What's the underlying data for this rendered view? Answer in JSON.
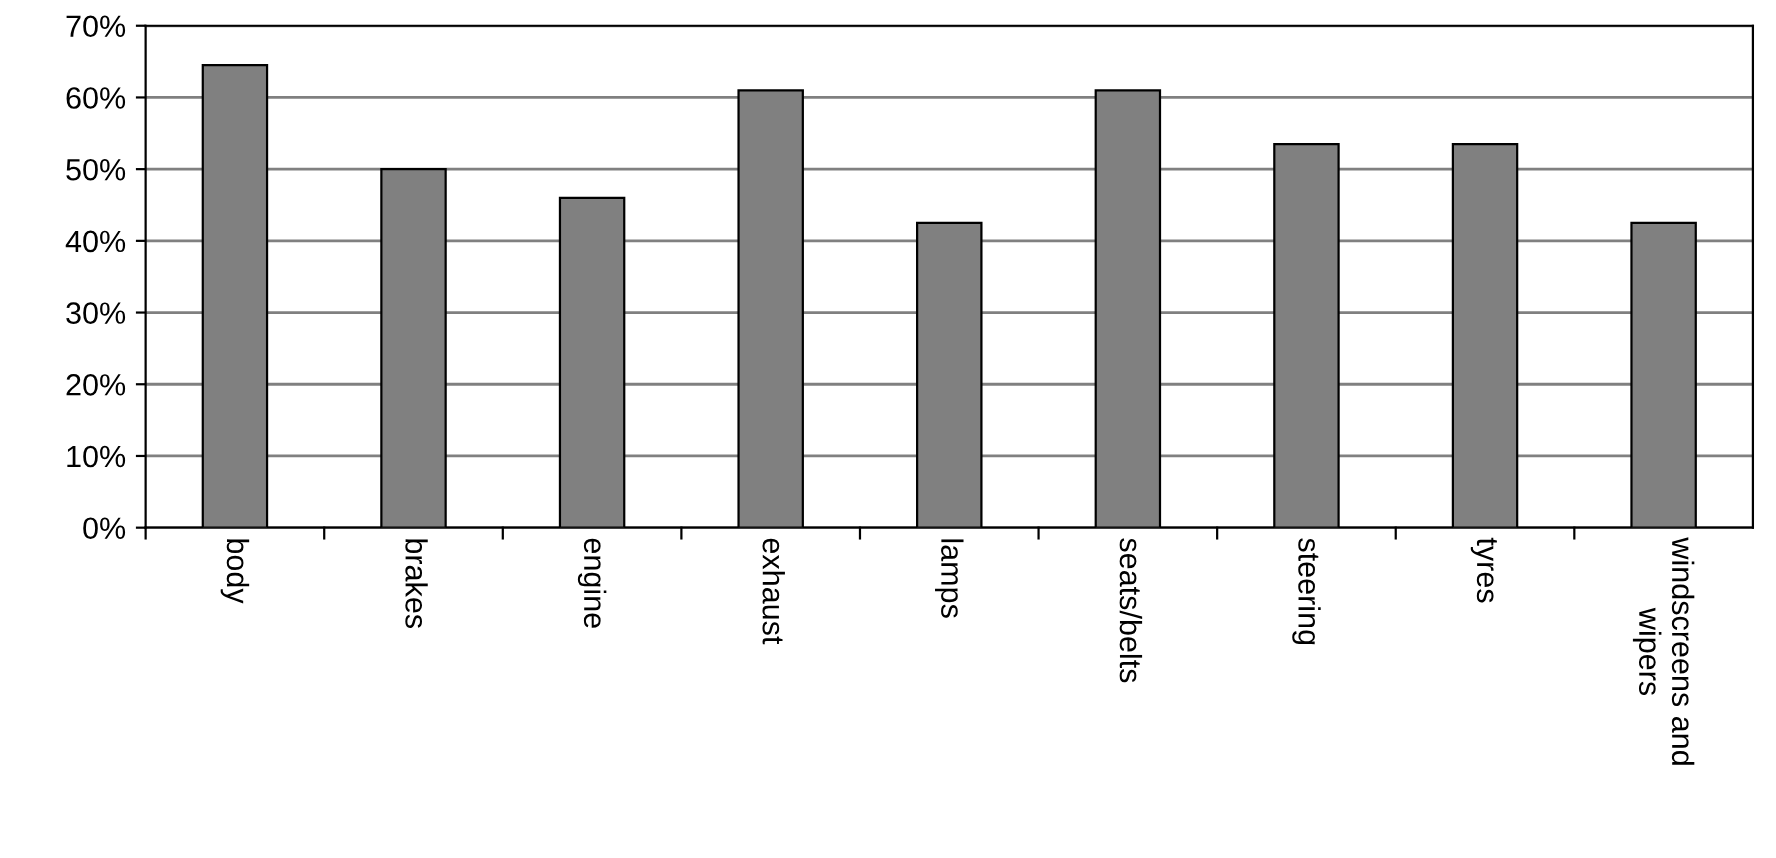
{
  "chart_data": {
    "type": "bar",
    "categories": [
      "body",
      "brakes",
      "engine",
      "exhaust",
      "lamps",
      "seats/belts",
      "steering",
      "tyres",
      "windscreens and\nwipers"
    ],
    "values": [
      64.5,
      50,
      46,
      61,
      42.5,
      61,
      53.5,
      53.5,
      42.5
    ],
    "color": "#808080",
    "ylim": [
      0,
      70
    ],
    "yticks": [
      {
        "value": 0,
        "label": "0%"
      },
      {
        "value": 10,
        "label": "10%"
      },
      {
        "value": 20,
        "label": "20%"
      },
      {
        "value": 30,
        "label": "30%"
      },
      {
        "value": 40,
        "label": "40%"
      },
      {
        "value": 50,
        "label": "50%"
      },
      {
        "value": 60,
        "label": "60%"
      },
      {
        "value": 70,
        "label": "70%"
      }
    ],
    "grid": "y"
  }
}
